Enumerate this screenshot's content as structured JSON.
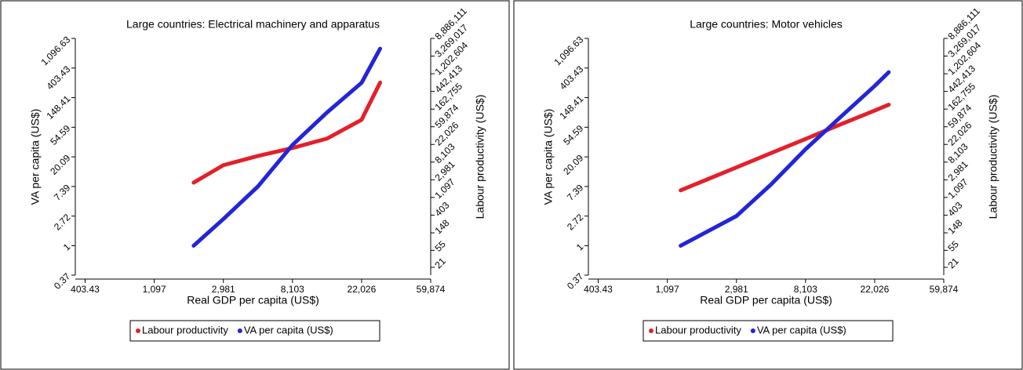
{
  "chart_data": [
    {
      "type": "line",
      "title": "Large countries: Electrical machinery and apparatus",
      "x_label": "Real GDP per capita (US$)",
      "y_label": "VA per capita (US$)",
      "y2_label": "Labour productivity (US$)",
      "x": [
        1940,
        2981,
        4915,
        8103,
        13360,
        22026,
        28800
      ],
      "series": [
        {
          "name": "Labour productivity",
          "color": "#e3202a",
          "axis": "y2",
          "values": [
            2540,
            6800,
            11500,
            18000,
            30700,
            89000,
            730000
          ]
        },
        {
          "name": "VA per capita (US$)",
          "color": "#2424d8",
          "values": [
            1,
            2.46,
            7.39,
            30,
            90,
            245,
            775
          ]
        }
      ],
      "xlog": true,
      "ylog": true,
      "y2log": true,
      "legend": "bottom",
      "xlim": [
        350,
        59874.14
      ],
      "xticks": [
        403.43,
        {
          "value": 1096.63,
          "label": "1,097"
        },
        {
          "value": 2980.96,
          "label": "2,981"
        },
        {
          "value": 8103.08,
          "label": "8,103"
        },
        {
          "value": 22026.47,
          "label": "22,026"
        },
        {
          "value": 59874.14,
          "label": "59,874"
        }
      ],
      "ylim": [
        0.37,
        1096.63
      ],
      "yticks": [
        0.37,
        1,
        2.72,
        7.39,
        20.09,
        54.59,
        148.41,
        403.43,
        {
          "value": 1096.63,
          "label": "1,096.63"
        }
      ],
      "y2lim": [
        13.5,
        8886111
      ],
      "y2ticks": [
        21,
        55,
        148,
        403,
        {
          "value": 1097,
          "label": "1,097"
        },
        {
          "value": 2981,
          "label": "2,981"
        },
        {
          "value": 8103,
          "label": "8,103"
        },
        {
          "value": 22026,
          "label": "22,026"
        },
        {
          "value": 59874,
          "label": "59,874"
        },
        {
          "value": 162755,
          "label": "162,755"
        },
        {
          "value": 442413,
          "label": "442,413"
        },
        {
          "value": 1202604,
          "label": "1,202,604"
        },
        {
          "value": 3269017,
          "label": "3,269,017"
        },
        {
          "value": 8886111,
          "label": "8,886,111"
        }
      ]
    },
    {
      "type": "line",
      "title": "Large countries: Motor vehicles",
      "x_label": "Real GDP per capita (US$)",
      "y_label": "VA per capita (US$)",
      "y2_label": "Labour productivity (US$)",
      "x": [
        1330,
        2981,
        4915,
        8103,
        13360,
        22026,
        27000
      ],
      "series": [
        {
          "name": "Labour productivity",
          "color": "#e3202a",
          "axis": "y2",
          "values": [
            1640,
            6000,
            13500,
            30000,
            67600,
            150000,
            209000
          ]
        },
        {
          "name": "VA per capita (US$)",
          "color": "#2424d8",
          "values": [
            1,
            2.72,
            7.9,
            26,
            76,
            220,
            350
          ]
        }
      ],
      "xlog": true,
      "ylog": true,
      "y2log": true,
      "legend": "bottom",
      "xlim": [
        350,
        59874.14
      ],
      "xticks": [
        403.43,
        {
          "value": 1096.63,
          "label": "1,097"
        },
        {
          "value": 2980.96,
          "label": "2,981"
        },
        {
          "value": 8103.08,
          "label": "8,103"
        },
        {
          "value": 22026.47,
          "label": "22,026"
        },
        {
          "value": 59874.14,
          "label": "59,874"
        }
      ],
      "ylim": [
        0.37,
        1096.63
      ],
      "yticks": [
        0.37,
        1,
        2.72,
        7.39,
        20.09,
        54.59,
        148.41,
        403.43,
        {
          "value": 1096.63,
          "label": "1,096.63"
        }
      ],
      "y2lim": [
        13.5,
        8886111
      ],
      "y2ticks": [
        21,
        55,
        148,
        403,
        {
          "value": 1097,
          "label": "1,097"
        },
        {
          "value": 2981,
          "label": "2,981"
        },
        {
          "value": 8103,
          "label": "8,103"
        },
        {
          "value": 22026,
          "label": "22,026"
        },
        {
          "value": 59874,
          "label": "59,874"
        },
        {
          "value": 162755,
          "label": "162,755"
        },
        {
          "value": 442413,
          "label": "442,413"
        },
        {
          "value": 1202604,
          "label": "1,202,604"
        },
        {
          "value": 3269017,
          "label": "3,269,017"
        },
        {
          "value": 8886111,
          "label": "8,886,111"
        }
      ]
    }
  ]
}
